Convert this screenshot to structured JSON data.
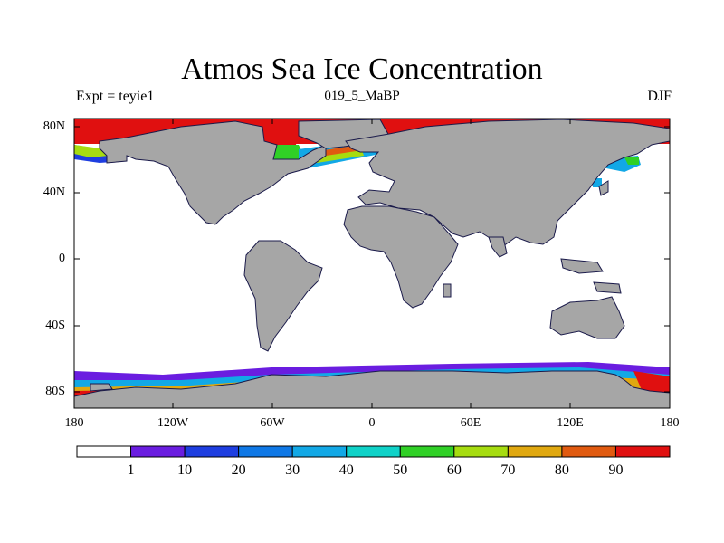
{
  "title": "Atmos Sea Ice Concentration",
  "subtitle_left": "Expt = teyie1",
  "subtitle_center": "019_5_MaBP",
  "subtitle_right": "DJF",
  "y_labels": [
    "80N",
    "40N",
    "0",
    "40S",
    "80S"
  ],
  "x_labels": [
    "180",
    "120W",
    "60W",
    "0",
    "60E",
    "120E",
    "180"
  ],
  "legend": {
    "colors": [
      "#ffffff",
      "#6a1de0",
      "#1e3ee0",
      "#0f78e6",
      "#12a8e6",
      "#10d2c8",
      "#30d026",
      "#a6dc10",
      "#e0a810",
      "#e05a10",
      "#e01010"
    ],
    "labels": [
      "1",
      "10",
      "20",
      "30",
      "40",
      "50",
      "60",
      "70",
      "80",
      "90"
    ]
  },
  "colors": {
    "land": "#a6a6a6",
    "ocean": "#ffffff",
    "ice_high": "#e01010"
  }
}
